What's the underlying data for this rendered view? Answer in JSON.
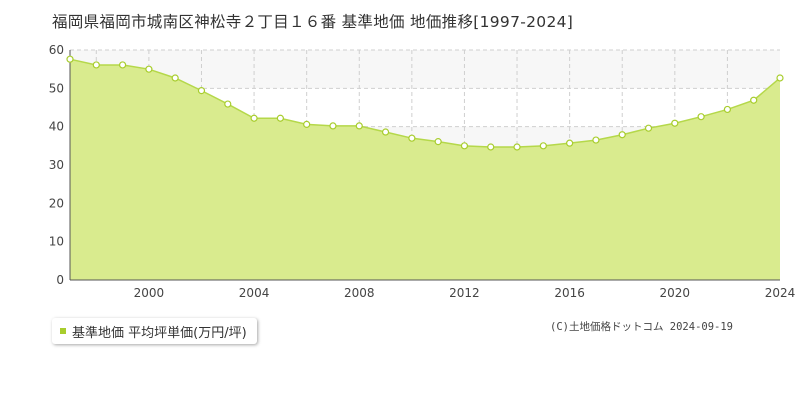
{
  "title": "福岡県福岡市城南区神松寺２丁目１６番 基準地価 地価推移[1997-2024]",
  "legend_label": "基準地価 平均坪単価(万円/坪)",
  "copyright": "(C)土地価格ドットコム 2024-09-19",
  "colors": {
    "fill": "#d9eb8e",
    "line": "#b5d84a",
    "marker": "#a8cd2d",
    "swatch": "#a8cd2d",
    "band": "#eeeeee"
  },
  "chart_data": {
    "type": "area",
    "title": "福岡県福岡市城南区神松寺２丁目１６番 基準地価 地価推移[1997-2024]",
    "xlabel": "",
    "ylabel": "",
    "xlim": [
      1997,
      2024
    ],
    "ylim": [
      0,
      60
    ],
    "yticks": [
      0,
      10,
      20,
      30,
      40,
      50,
      60
    ],
    "xticks": [
      2000,
      2004,
      2008,
      2012,
      2016,
      2020,
      2024
    ],
    "grid": true,
    "legend": "bottom-left",
    "series": [
      {
        "name": "基準地価 平均坪単価(万円/坪)",
        "x": [
          1997,
          1998,
          1999,
          2000,
          2001,
          2002,
          2003,
          2004,
          2005,
          2006,
          2007,
          2008,
          2009,
          2010,
          2011,
          2012,
          2013,
          2014,
          2015,
          2016,
          2017,
          2018,
          2019,
          2020,
          2021,
          2022,
          2023,
          2024
        ],
        "values": [
          57.6,
          56.1,
          56.1,
          55.0,
          52.7,
          49.4,
          45.9,
          42.2,
          42.2,
          40.6,
          40.2,
          40.2,
          38.6,
          37.0,
          36.1,
          35.0,
          34.7,
          34.7,
          35.0,
          35.7,
          36.5,
          37.9,
          39.6,
          40.9,
          42.6,
          44.5,
          46.9,
          52.7
        ]
      }
    ]
  }
}
